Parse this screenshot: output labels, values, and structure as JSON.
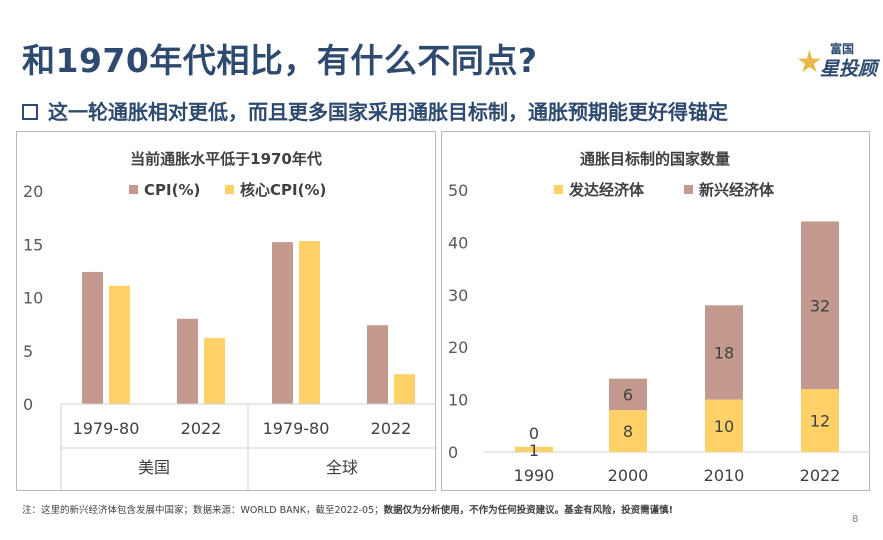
{
  "title": "和1970年代相比，有什么不同点?",
  "subtitle": "这一轮通胀相对更低，而且更多国家采用通胀目标制，通胀预期能更好得锚定",
  "logo": {
    "top": "富国",
    "main": "星投顾"
  },
  "chart_data": [
    {
      "type": "bar",
      "title": "当前通胀水平低于1970年代",
      "categories": [
        "1979-80",
        "2022",
        "1979-80",
        "2022"
      ],
      "groups": [
        {
          "label": "美国",
          "categories": [
            "1979-80",
            "2022"
          ]
        },
        {
          "label": "全球",
          "categories": [
            "1979-80",
            "2022"
          ]
        }
      ],
      "series": [
        {
          "name": "CPI(%)",
          "values": [
            12.4,
            8.0,
            15.2,
            7.4
          ]
        },
        {
          "name": "核心CPI(%)",
          "values": [
            11.1,
            6.2,
            15.3,
            2.8
          ]
        }
      ],
      "yticks": [
        "0",
        "5",
        "10",
        "15",
        "20"
      ],
      "ylim": [
        0,
        20
      ],
      "legend_position": "top",
      "colors": [
        "#c49a8e",
        "#ffd166"
      ]
    },
    {
      "type": "bar",
      "stacked": true,
      "title": "通胀目标制的国家数量",
      "categories": [
        "1990",
        "2000",
        "2010",
        "2022"
      ],
      "series": [
        {
          "name": "发达经济体",
          "values": [
            1,
            8,
            10,
            12
          ],
          "labels": [
            "1",
            "8",
            "10",
            "12"
          ]
        },
        {
          "name": "新兴经济体",
          "values": [
            0,
            6,
            18,
            32
          ],
          "labels": [
            "0",
            "6",
            "18",
            "32"
          ]
        }
      ],
      "yticks": [
        "0",
        "10",
        "20",
        "30",
        "40",
        "50"
      ],
      "ylim": [
        0,
        50
      ],
      "legend_position": "top",
      "colors": [
        "#ffd166",
        "#c49a8e"
      ]
    }
  ],
  "footnote": {
    "normal": "注：这里的新兴经济体包含发展中国家；数据来源：WORLD BANK，截至2022-05；",
    "bold": "数据仅为分析使用，不作为任何投资建议。基金有风险，投资需谨慎!"
  },
  "page_number": "8"
}
